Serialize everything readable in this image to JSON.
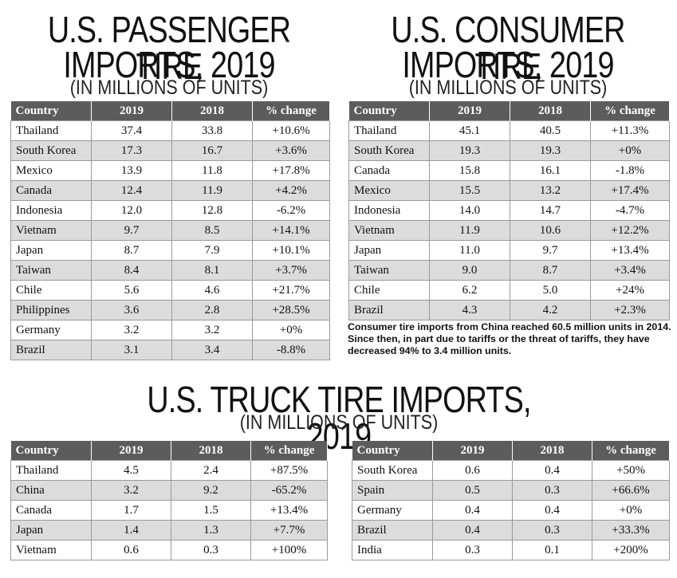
{
  "passenger": {
    "title_line1": "U.S. PASSENGER TIRE",
    "title_line2": "IMPORTS, 2019",
    "subtitle": "(IN MILLIONS OF UNITS)",
    "headers": [
      "Country",
      "2019",
      "2018",
      "% change"
    ],
    "rows": [
      [
        "Thailand",
        "37.4",
        "33.8",
        "+10.6%"
      ],
      [
        "South Korea",
        "17.3",
        "16.7",
        "+3.6%"
      ],
      [
        "Mexico",
        "13.9",
        "11.8",
        "+17.8%"
      ],
      [
        "Canada",
        "12.4",
        "11.9",
        "+4.2%"
      ],
      [
        "Indonesia",
        "12.0",
        "12.8",
        "-6.2%"
      ],
      [
        "Vietnam",
        "9.7",
        "8.5",
        "+14.1%"
      ],
      [
        "Japan",
        "8.7",
        "7.9",
        "+10.1%"
      ],
      [
        "Taiwan",
        "8.4",
        "8.1",
        "+3.7%"
      ],
      [
        "Chile",
        "5.6",
        "4.6",
        "+21.7%"
      ],
      [
        "Philippines",
        "3.6",
        "2.8",
        "+28.5%"
      ],
      [
        "Germany",
        "3.2",
        "3.2",
        "+0%"
      ],
      [
        "Brazil",
        "3.1",
        "3.4",
        "-8.8%"
      ]
    ]
  },
  "consumer": {
    "title_line1": "U.S. CONSUMER TIRE",
    "title_line2": "IMPORTS, 2019",
    "subtitle": "(IN MILLIONS OF UNITS)",
    "headers": [
      "Country",
      "2019",
      "2018",
      "% change"
    ],
    "rows": [
      [
        "Thailand",
        "45.1",
        "40.5",
        "+11.3%"
      ],
      [
        "South Korea",
        "19.3",
        "19.3",
        "+0%"
      ],
      [
        "Canada",
        "15.8",
        "16.1",
        "-1.8%"
      ],
      [
        "Mexico",
        "15.5",
        "13.2",
        "+17.4%"
      ],
      [
        "Indonesia",
        "14.0",
        "14.7",
        "-4.7%"
      ],
      [
        "Vietnam",
        "11.9",
        "10.6",
        "+12.2%"
      ],
      [
        "Japan",
        "11.0",
        "9.7",
        "+13.4%"
      ],
      [
        "Taiwan",
        "9.0",
        "8.7",
        "+3.4%"
      ],
      [
        "Chile",
        "6.2",
        "5.0",
        "+24%"
      ],
      [
        "Brazil",
        "4.3",
        "4.2",
        "+2.3%"
      ]
    ],
    "note": "Consumer tire imports from China reached 60.5 million units in 2014. Since then, in part due to tariffs or the threat of tariffs, they have decreased 94% to 3.4 million units."
  },
  "truck": {
    "title": "U.S. TRUCK TIRE IMPORTS, 2019",
    "subtitle": "(IN MILLIONS OF UNITS)",
    "headers": [
      "Country",
      "2019",
      "2018",
      "% change"
    ],
    "rows_left": [
      [
        "Thailand",
        "4.5",
        "2.4",
        "+87.5%"
      ],
      [
        "China",
        "3.2",
        "9.2",
        "-65.2%"
      ],
      [
        "Canada",
        "1.7",
        "1.5",
        "+13.4%"
      ],
      [
        "Japan",
        "1.4",
        "1.3",
        "+7.7%"
      ],
      [
        "Vietnam",
        "0.6",
        "0.3",
        "+100%"
      ]
    ],
    "rows_right": [
      [
        "South Korea",
        "0.6",
        "0.4",
        "+50%"
      ],
      [
        "Spain",
        "0.5",
        "0.3",
        "+66.6%"
      ],
      [
        "Germany",
        "0.4",
        "0.4",
        "+0%"
      ],
      [
        "Brazil",
        "0.4",
        "0.3",
        "+33.3%"
      ],
      [
        "India",
        "0.3",
        "0.1",
        "+200%"
      ]
    ]
  }
}
